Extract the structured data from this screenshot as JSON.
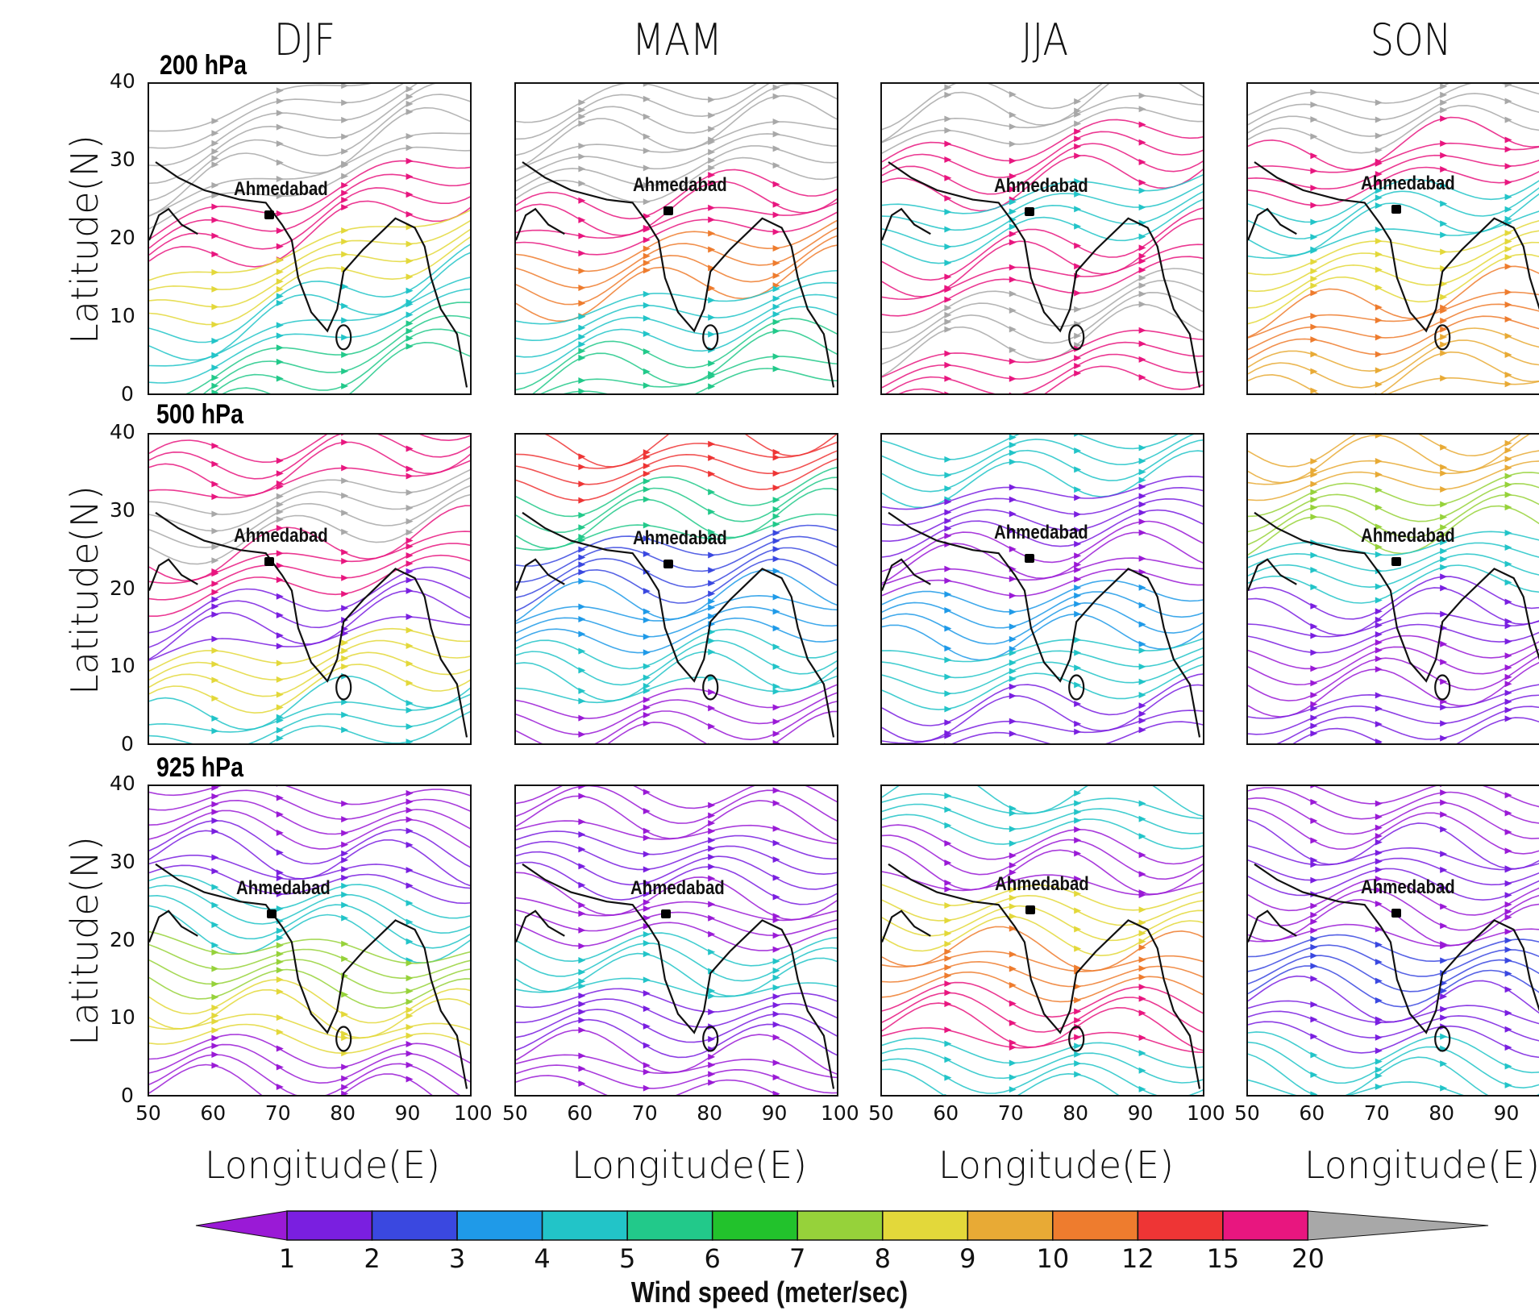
{
  "seasons": [
    "DJF",
    "MAM",
    "JJA",
    "SON"
  ],
  "levels": [
    "200 hPa",
    "500 hPa",
    "925 hPa"
  ],
  "city": "Ahmedabad",
  "axes": {
    "ylabel": "Latitude(N)",
    "xlabel": "Longitude(E)",
    "lat_ticks": [
      "40",
      "30",
      "20",
      "10",
      "0"
    ],
    "lon_ticks": [
      "50",
      "60",
      "70",
      "80",
      "90",
      "100"
    ],
    "lon_ticks_last": [
      "50",
      "60",
      "70",
      "80",
      "90"
    ],
    "lat_range": [
      0,
      40
    ],
    "lon_range": [
      50,
      100
    ]
  },
  "colorbar": {
    "title": "Wind speed (meter/sec)",
    "labels": [
      "1",
      "2",
      "3",
      "4",
      "5",
      "6",
      "7",
      "8",
      "9",
      "10",
      "12",
      "15",
      "20"
    ],
    "colors": [
      "#9a1ad6",
      "#7a1fe0",
      "#3a48e0",
      "#1f9ae8",
      "#22c4c8",
      "#22c98a",
      "#22c22c",
      "#96d23a",
      "#e3d83a",
      "#e8aa35",
      "#ee7c2e",
      "#ee3535",
      "#e8167f",
      "#a8a8a8"
    ],
    "low_color": "#9a1ad6",
    "high_color": "#a8a8a8"
  },
  "panel_palettes": [
    [
      "#a8a8a8",
      "#a8a8a8",
      "#e8167f",
      "#e3d83a",
      "#22c4c8",
      "#22c98a"
    ],
    [
      "#a8a8a8",
      "#a8a8a8",
      "#e8167f",
      "#ee7c2e",
      "#22c4c8",
      "#22c98a"
    ],
    [
      "#a8a8a8",
      "#e8167f",
      "#22c4c8",
      "#e8167f",
      "#a8a8a8",
      "#e8167f"
    ],
    [
      "#a8a8a8",
      "#e8167f",
      "#22c4c8",
      "#e3d83a",
      "#ee7c2e",
      "#e8aa35"
    ],
    [
      "#e8167f",
      "#a8a8a8",
      "#e8167f",
      "#7a1fe0",
      "#e3d83a",
      "#22c4c8"
    ],
    [
      "#ee3535",
      "#22c98a",
      "#3a48e0",
      "#1f9ae8",
      "#22c4c8",
      "#9a1ad6"
    ],
    [
      "#22c4c8",
      "#7a1fe0",
      "#9a1ad6",
      "#1f9ae8",
      "#22c4c8",
      "#7a1fe0"
    ],
    [
      "#e8aa35",
      "#96d23a",
      "#22c4c8",
      "#7a1fe0",
      "#9a1ad6",
      "#7a1fe0"
    ],
    [
      "#9a1ad6",
      "#7a1fe0",
      "#22c4c8",
      "#96d23a",
      "#e3d83a",
      "#9a1ad6"
    ],
    [
      "#9a1ad6",
      "#7a1fe0",
      "#9a1ad6",
      "#22c4c8",
      "#7a1fe0",
      "#9a1ad6"
    ],
    [
      "#22c4c8",
      "#9a1ad6",
      "#e3d83a",
      "#ee7c2e",
      "#e8167f",
      "#22c4c8"
    ],
    [
      "#9a1ad6",
      "#7a1fe0",
      "#9a1ad6",
      "#3a48e0",
      "#7a1fe0",
      "#22c4c8"
    ]
  ]
}
